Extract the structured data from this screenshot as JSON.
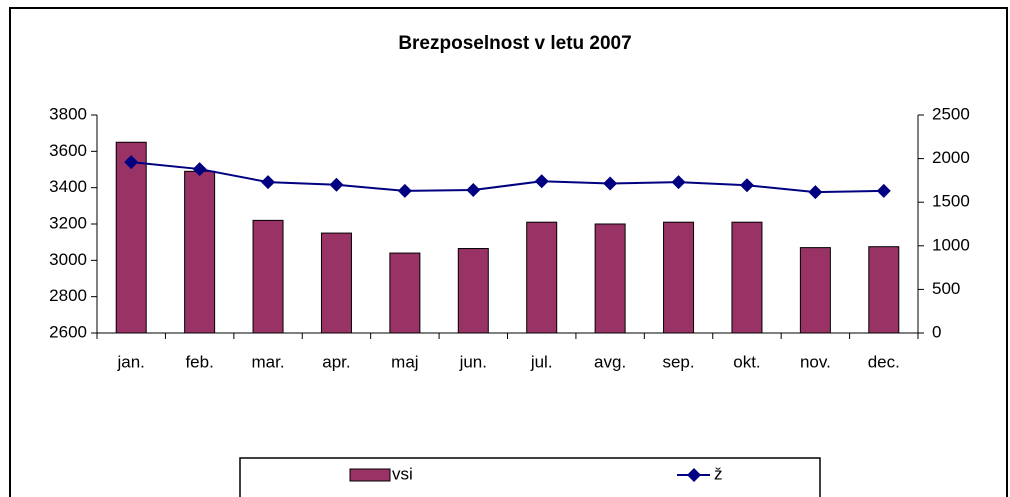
{
  "chart_data": {
    "type": "bar-line",
    "title": "Brezposelnost v letu 2007",
    "categories": [
      "jan.",
      "feb.",
      "mar.",
      "apr.",
      "maj",
      "jun.",
      "jul.",
      "avg.",
      "sep.",
      "okt.",
      "nov.",
      "dec."
    ],
    "series": [
      {
        "name": "vsi",
        "type": "bar",
        "color": "#993366",
        "axis": "y",
        "values": [
          3650,
          3490,
          3220,
          3150,
          3040,
          3065,
          3210,
          3200,
          3210,
          3210,
          3070,
          3075
        ]
      },
      {
        "name": "ž",
        "type": "line",
        "color": "#000080",
        "axis": "y2",
        "values": [
          1960,
          1880,
          1730,
          1700,
          1630,
          1640,
          1740,
          1715,
          1730,
          1695,
          1615,
          1630
        ]
      }
    ],
    "ylim": [
      2600,
      3800
    ],
    "yticks": [
      2600,
      2800,
      3000,
      3200,
      3400,
      3600,
      3800
    ],
    "y2lim": [
      0,
      2500
    ],
    "y2ticks": [
      0,
      500,
      1000,
      1500,
      2000,
      2500
    ],
    "legend": "bottom"
  }
}
